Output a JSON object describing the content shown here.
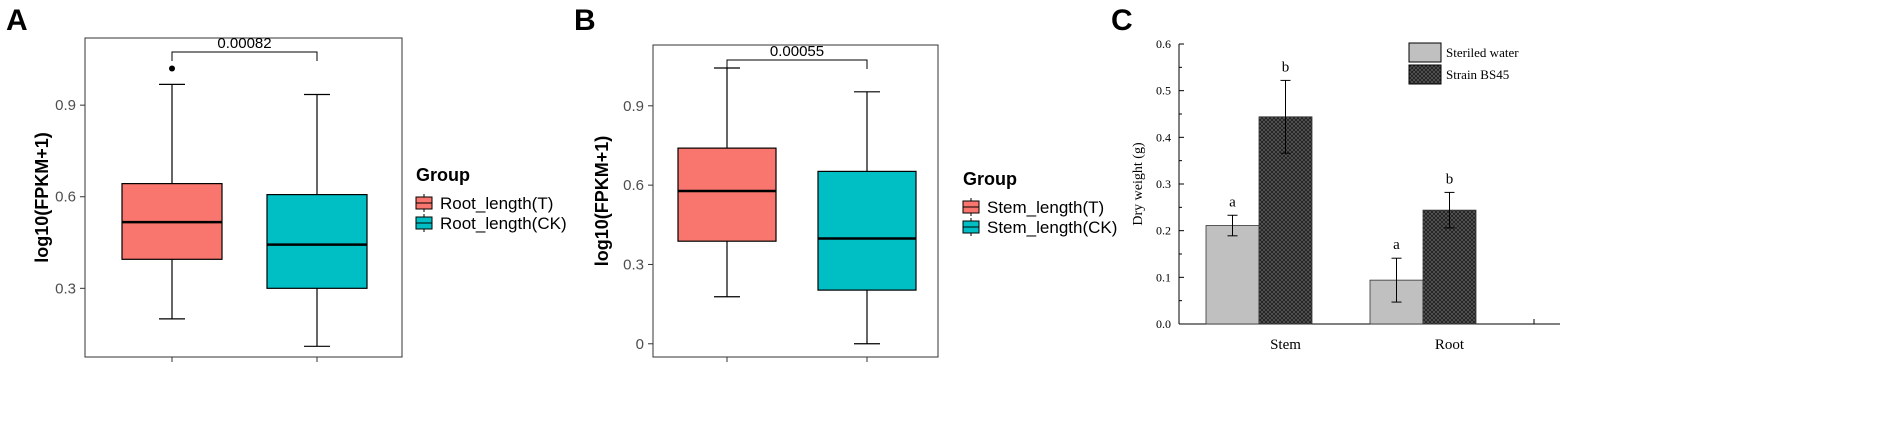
{
  "panels": {
    "a": "A",
    "b": "B",
    "c": "C"
  },
  "chart_data": [
    {
      "type": "box",
      "ylabel": "log10(FPKM+1)",
      "ylim": [
        0.075,
        1.12
      ],
      "yticks": [
        0.3,
        0.6,
        0.9
      ],
      "significance": "0.00082",
      "legend": {
        "title": "Group",
        "placement": "right"
      },
      "series": [
        {
          "name": "Root_length(T)",
          "color": "#F8766D",
          "whisker_low": 0.2,
          "q1": 0.395,
          "median": 0.517,
          "q3": 0.643,
          "whisker_high": 0.968,
          "outliers": [
            1.02
          ]
        },
        {
          "name": "Root_length(CK)",
          "color": "#00BFC4",
          "whisker_low": 0.11,
          "q1": 0.3,
          "median": 0.443,
          "q3": 0.607,
          "whisker_high": 0.935,
          "outliers": []
        }
      ]
    },
    {
      "type": "box",
      "ylabel": "log10(FPKM+1)",
      "ylim": [
        -0.05,
        1.13
      ],
      "yticks": [
        0.0,
        0.3,
        0.6,
        0.9
      ],
      "significance": "0.00055",
      "legend": {
        "title": "Group",
        "placement": "right"
      },
      "series": [
        {
          "name": "Stem_length(T)",
          "color": "#F8766D",
          "whisker_low": 0.178,
          "q1": 0.388,
          "median": 0.578,
          "q3": 0.74,
          "whisker_high": 1.043,
          "outliers": []
        },
        {
          "name": "Stem_length(CK)",
          "color": "#00BFC4",
          "whisker_low": 0.0,
          "q1": 0.203,
          "median": 0.398,
          "q3": 0.652,
          "whisker_high": 0.953,
          "outliers": []
        }
      ]
    },
    {
      "type": "bar",
      "ylabel": "Dry weight (g)",
      "ylim": [
        0,
        0.6
      ],
      "yticks": [
        "0.0",
        "0.1",
        "0.2",
        "0.3",
        "0.4",
        "0.5",
        "0.6"
      ],
      "categories": [
        "Stem",
        "Root"
      ],
      "legend": {
        "placement": "top-right"
      },
      "series": [
        {
          "name": "Steriled water",
          "color": "#C0C0C0",
          "values": [
            0.211,
            0.094
          ],
          "errors": [
            0.022,
            0.047
          ],
          "letters": [
            "a",
            "a"
          ]
        },
        {
          "name": "Strain BS45",
          "color": "#5a5a5a",
          "values": [
            0.444,
            0.244
          ],
          "errors": [
            0.078,
            0.038
          ],
          "letters": [
            "b",
            "b"
          ]
        }
      ]
    }
  ]
}
